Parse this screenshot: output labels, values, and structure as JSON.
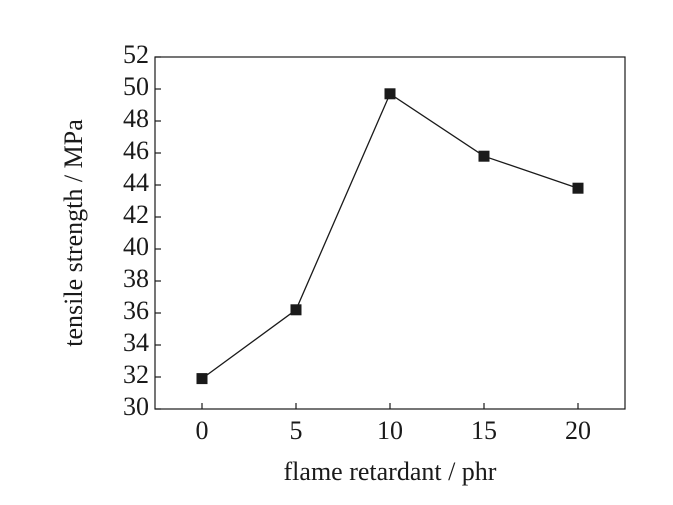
{
  "chart_data": {
    "type": "line",
    "x_label": "flame retardant / phr",
    "y_label": "tensile strength / MPa",
    "x": [
      0,
      5,
      10,
      15,
      20
    ],
    "series": [
      {
        "name": "tensile strength",
        "color": "#1a1a1a",
        "values": [
          31.9,
          36.2,
          49.7,
          45.8,
          43.8
        ]
      }
    ],
    "xlim": [
      -2.5,
      22.5
    ],
    "xticks": [
      0,
      5,
      10,
      15,
      20
    ],
    "ylim": [
      30,
      52
    ],
    "yticks": [
      30,
      32,
      34,
      36,
      38,
      40,
      42,
      44,
      46,
      48,
      50,
      52
    ],
    "grid": false,
    "marker": "square"
  }
}
